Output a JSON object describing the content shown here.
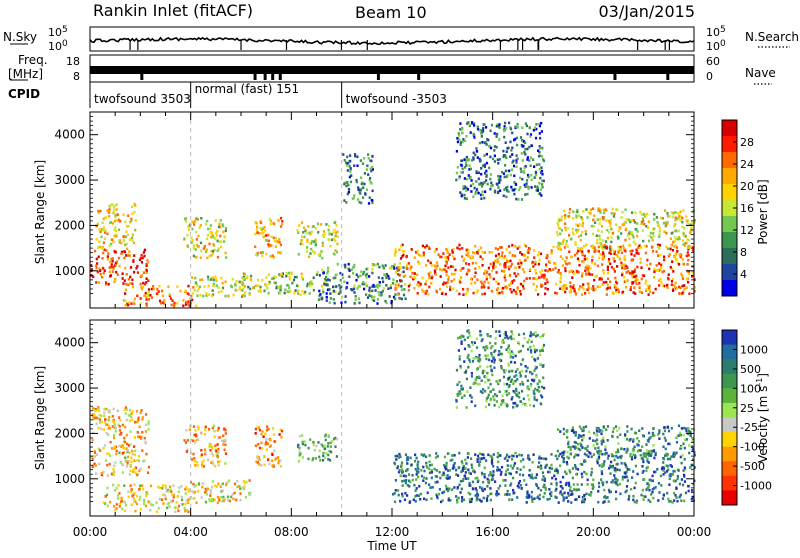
{
  "header": {
    "station": "Rankin Inlet (fitACF)",
    "beam": "Beam 10",
    "date": "03/Jan/2015"
  },
  "noise_panel": {
    "left_label": "N.Sky",
    "right_label": "N.Search",
    "right_label_style": "dotted",
    "ytick_top": "10^5",
    "ytick_bottom": "10^0"
  },
  "freq_panel": {
    "left_label_line1": "Freq.",
    "left_label_line2": "[MHz]",
    "left_ticks": [
      "18",
      "8"
    ],
    "right_label": "Nave",
    "right_label_style": "dotted",
    "right_ticks": [
      "60",
      "0"
    ]
  },
  "cpid_panel": {
    "label": "CPID",
    "segments": [
      {
        "name": "twofsound 3503",
        "start_hour": 0.0
      },
      {
        "name": "normal (fast) 151",
        "start_hour": 4.0
      },
      {
        "name": "twofsound -3503",
        "start_hour": 10.0
      }
    ]
  },
  "chart_data": [
    {
      "type": "heatmap",
      "quantity": "Power",
      "ylabel": "Slant Range [km]",
      "colorbar_label": "Power [dB]",
      "x_range_hours": [
        0,
        24
      ],
      "ylim": [
        180,
        4500
      ],
      "yticks": [
        1000,
        2000,
        3000,
        4000
      ],
      "colorbar": {
        "tick_labels": [
          "28",
          "24",
          "20",
          "16",
          "12",
          "8",
          "4"
        ],
        "bands": [
          "#d70000",
          "#ff1a00",
          "#ff6a00",
          "#ffaa00",
          "#ffd200",
          "#c8e632",
          "#73c850",
          "#3c9650",
          "#2d6e5a",
          "#1e46a0",
          "#0000e6"
        ]
      },
      "echo_regions": [
        {
          "t0": 0.0,
          "t1": 2.3,
          "r0": 700,
          "r1": 1500,
          "level": 0.9
        },
        {
          "t0": 0.2,
          "t1": 1.8,
          "r0": 1500,
          "r1": 2500,
          "level": 0.6
        },
        {
          "t0": 1.3,
          "t1": 4.2,
          "r0": 250,
          "r1": 700,
          "level": 0.75
        },
        {
          "t0": 4.0,
          "t1": 6.4,
          "r0": 450,
          "r1": 900,
          "level": 0.5
        },
        {
          "t0": 6.0,
          "t1": 9.4,
          "r0": 500,
          "r1": 1000,
          "level": 0.45
        },
        {
          "t0": 3.7,
          "t1": 5.4,
          "r0": 1300,
          "r1": 2200,
          "level": 0.55
        },
        {
          "t0": 6.5,
          "t1": 7.6,
          "r0": 1300,
          "r1": 2200,
          "level": 0.65
        },
        {
          "t0": 8.2,
          "t1": 9.8,
          "r0": 1300,
          "r1": 2100,
          "level": 0.5
        },
        {
          "t0": 9.0,
          "t1": 12.5,
          "r0": 300,
          "r1": 1200,
          "level": 0.25
        },
        {
          "t0": 12.0,
          "t1": 24.0,
          "r0": 500,
          "r1": 1600,
          "level": 0.8
        },
        {
          "t0": 18.5,
          "t1": 24.0,
          "r0": 1500,
          "r1": 2400,
          "level": 0.55
        },
        {
          "t0": 14.5,
          "t1": 18.0,
          "r0": 2600,
          "r1": 4300,
          "level": 0.2
        },
        {
          "t0": 10.0,
          "t1": 11.2,
          "r0": 2500,
          "r1": 3600,
          "level": 0.2
        }
      ]
    },
    {
      "type": "heatmap",
      "quantity": "Velocity",
      "ylabel": "Slant Range [km]",
      "colorbar_label": "Velocity [m s^-1]",
      "xlabel": "Time UT",
      "x_range_hours": [
        0,
        24
      ],
      "ylim": [
        180,
        4500
      ],
      "yticks": [
        1000,
        2000,
        3000,
        4000
      ],
      "xticks": [
        "00:00",
        "04:00",
        "08:00",
        "12:00",
        "16:00",
        "20:00",
        "00:00"
      ],
      "colorbar": {
        "tick_labels": [
          "1000",
          "500",
          "100",
          "25",
          "-25",
          "-100",
          "-500",
          "-1000"
        ],
        "bands": [
          "#1e32b4",
          "#1e6e9e",
          "#2d7d6e",
          "#3c9650",
          "#5ab43c",
          "#9be650",
          "#c8c8c8",
          "#ffd200",
          "#ff9b00",
          "#ff6400",
          "#ff3200",
          "#e60000"
        ]
      },
      "echo_regions": [
        {
          "t0": 0.0,
          "t1": 2.3,
          "r0": 1100,
          "r1": 2600,
          "level": 0.35
        },
        {
          "t0": 0.5,
          "t1": 4.0,
          "r0": 300,
          "r1": 900,
          "level": 0.4
        },
        {
          "t0": 3.7,
          "t1": 6.4,
          "r0": 500,
          "r1": 1000,
          "level": 0.4
        },
        {
          "t0": 3.7,
          "t1": 5.4,
          "r0": 1300,
          "r1": 2200,
          "level": 0.3
        },
        {
          "t0": 6.5,
          "t1": 7.6,
          "r0": 1300,
          "r1": 2200,
          "level": 0.25
        },
        {
          "t0": 8.2,
          "t1": 9.8,
          "r0": 1400,
          "r1": 2000,
          "level": 0.7
        },
        {
          "t0": 12.0,
          "t1": 24.0,
          "r0": 500,
          "r1": 1600,
          "level": 0.85
        },
        {
          "t0": 18.5,
          "t1": 24.0,
          "r0": 1500,
          "r1": 2200,
          "level": 0.8
        },
        {
          "t0": 14.5,
          "t1": 18.0,
          "r0": 2600,
          "r1": 4300,
          "level": 0.75
        }
      ]
    }
  ]
}
